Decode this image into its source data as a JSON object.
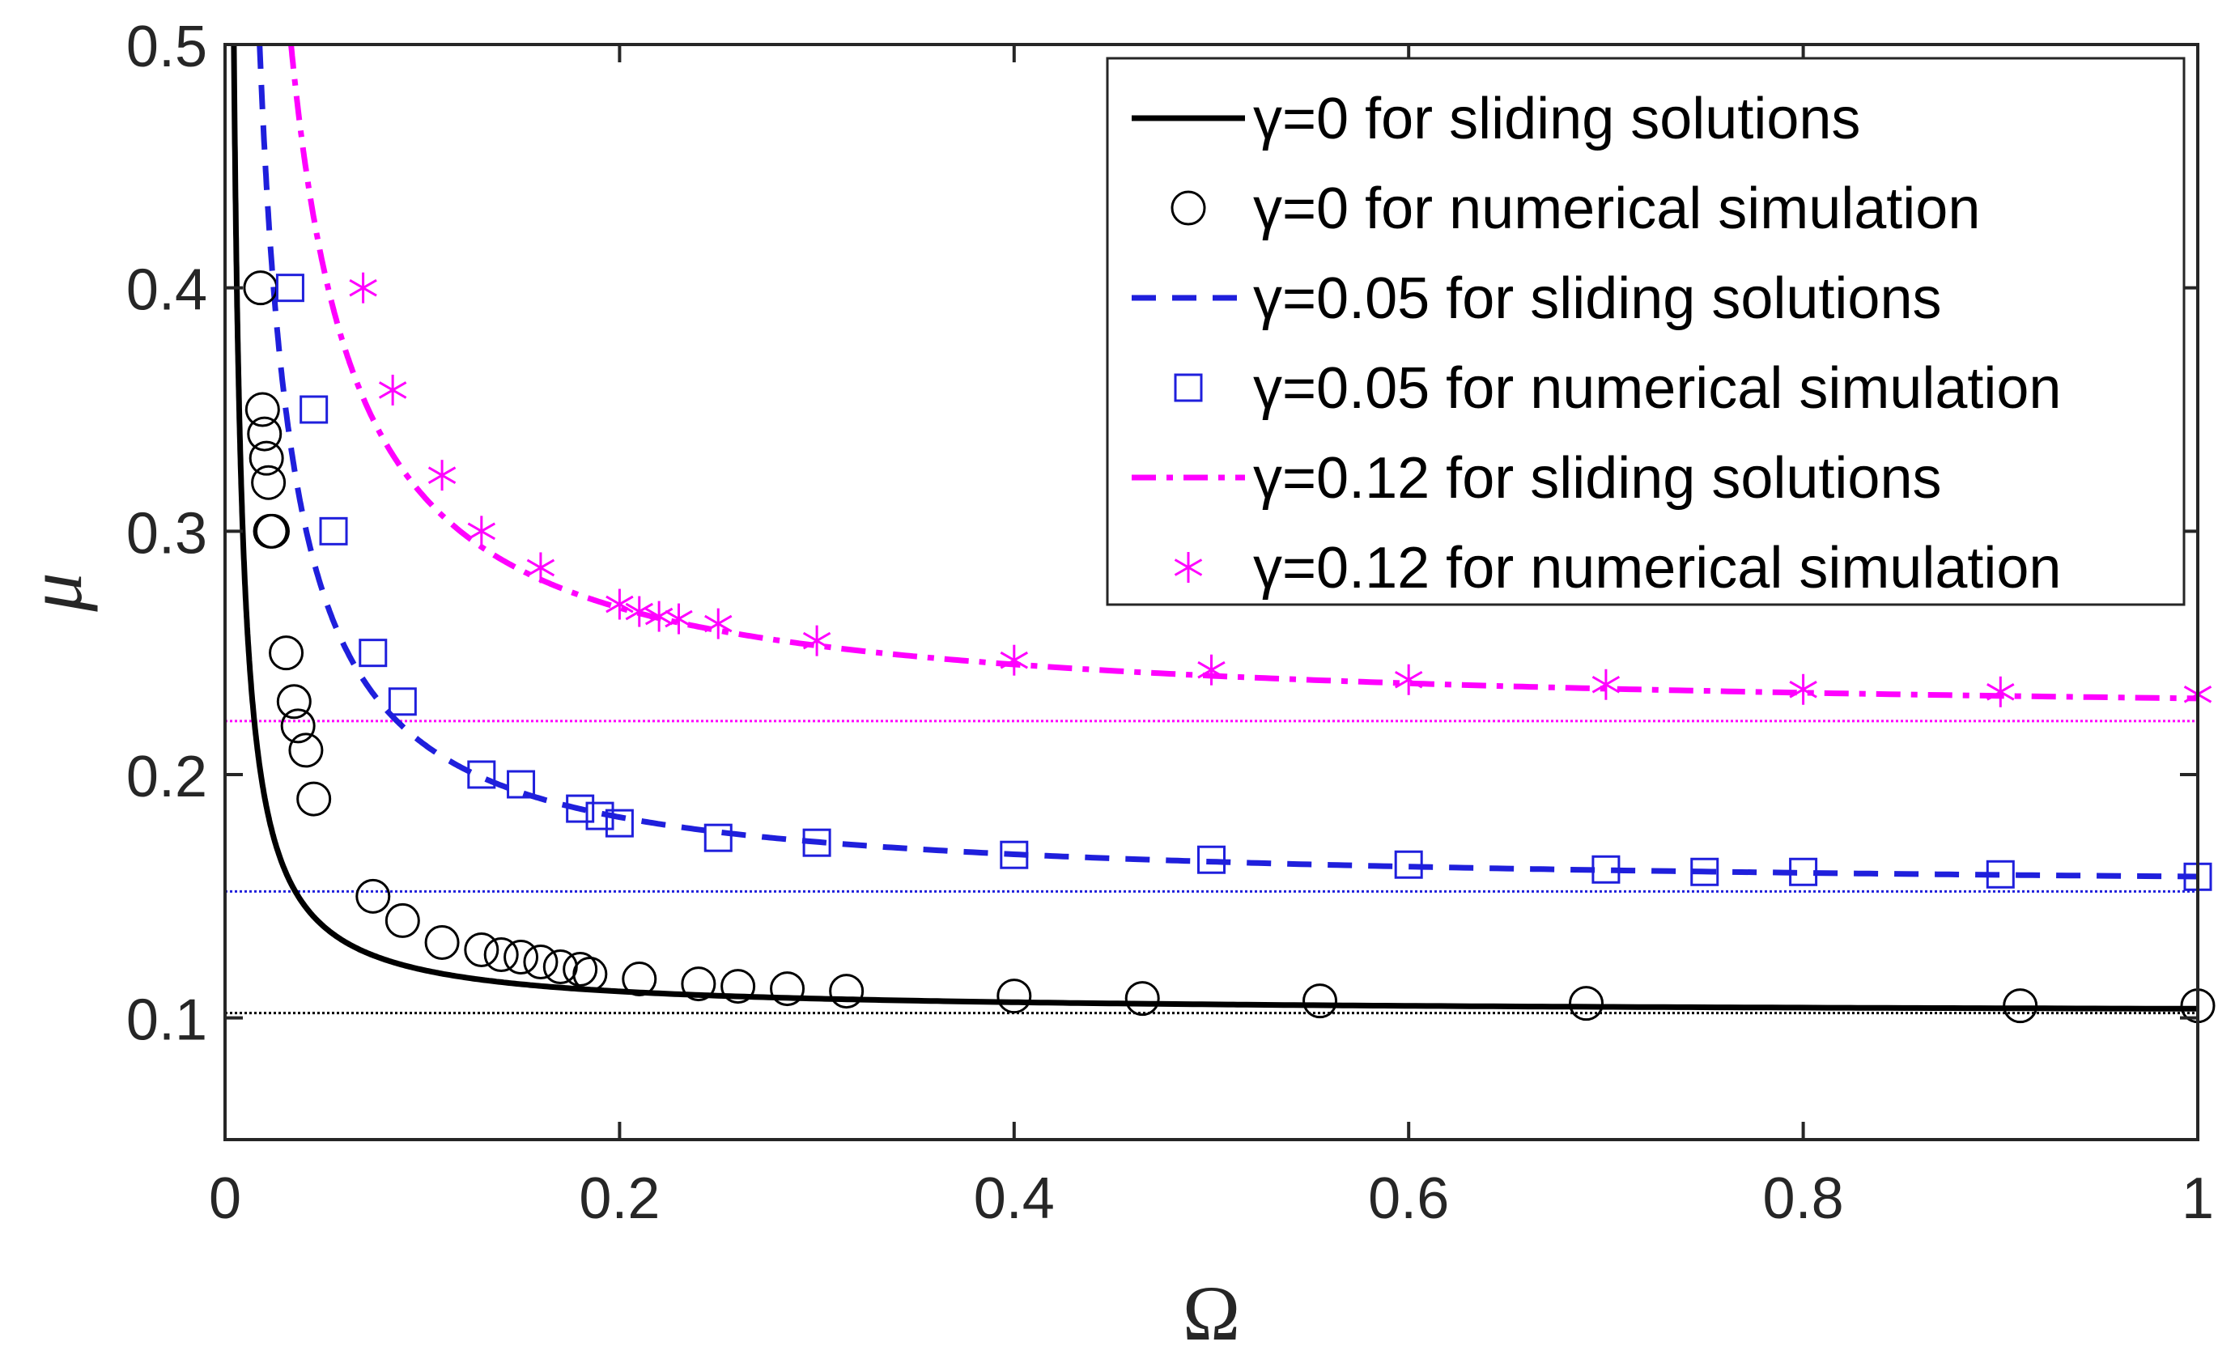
{
  "chart_data": {
    "type": "line",
    "title": "",
    "xlabel": "Ω",
    "ylabel": "μ",
    "xlim": [
      0,
      1
    ],
    "ylim": [
      0.05,
      0.5
    ],
    "x_ticks": [
      0,
      0.2,
      0.4,
      0.6,
      0.8,
      1
    ],
    "x_tick_labels": [
      "0",
      "0.2",
      "0.4",
      "0.6",
      "0.8",
      "1"
    ],
    "y_ticks": [
      0.1,
      0.2,
      0.3,
      0.4,
      0.5
    ],
    "y_tick_labels": [
      "0.1",
      "0.2",
      "0.3",
      "0.4",
      "0.5"
    ],
    "grid": false,
    "legend_position": "top-right",
    "colors": {
      "black": "#000000",
      "blue": "#1f1fdc",
      "magenta": "#ff00ff"
    },
    "series": [
      {
        "name": "γ=0 for sliding solutions",
        "kind": "line",
        "style": "solid",
        "color": "#000000",
        "gamma": 0,
        "asymptote": 0.102,
        "coef": 0.00178
      },
      {
        "name": "γ=0 for numerical simulation",
        "kind": "markers",
        "marker": "circle",
        "color": "#000000",
        "x": [
          0.018,
          0.019,
          0.02,
          0.021,
          0.022,
          0.023,
          0.024,
          0.031,
          0.035,
          0.037,
          0.041,
          0.045,
          0.075,
          0.09,
          0.11,
          0.13,
          0.14,
          0.15,
          0.16,
          0.17,
          0.18,
          0.185,
          0.21,
          0.24,
          0.26,
          0.285,
          0.315,
          0.4,
          0.465,
          0.555,
          0.69,
          0.91,
          1.0
        ],
        "y": [
          0.4,
          0.35,
          0.34,
          0.33,
          0.32,
          0.3,
          0.3,
          0.25,
          0.23,
          0.22,
          0.21,
          0.19,
          0.15,
          0.14,
          0.131,
          0.128,
          0.126,
          0.125,
          0.123,
          0.121,
          0.12,
          0.118,
          0.116,
          0.114,
          0.113,
          0.112,
          0.111,
          0.109,
          0.108,
          0.107,
          0.106,
          0.105,
          0.105
        ]
      },
      {
        "name": "γ=0.05 for sliding solutions",
        "kind": "line",
        "style": "dashed",
        "color": "#1f1fdc",
        "gamma": 0.05,
        "asymptote": 0.152,
        "coef": 0.0061
      },
      {
        "name": "γ=0.05 for numerical simulation",
        "kind": "markers",
        "marker": "square",
        "color": "#1f1fdc",
        "x": [
          0.033,
          0.045,
          0.055,
          0.075,
          0.09,
          0.13,
          0.15,
          0.18,
          0.19,
          0.2,
          0.25,
          0.3,
          0.4,
          0.5,
          0.6,
          0.7,
          0.75,
          0.8,
          0.9,
          1.0
        ],
        "y": [
          0.4,
          0.35,
          0.3,
          0.25,
          0.23,
          0.2,
          0.196,
          0.186,
          0.183,
          0.18,
          0.174,
          0.172,
          0.167,
          0.165,
          0.163,
          0.161,
          0.16,
          0.16,
          0.159,
          0.158
        ]
      },
      {
        "name": "γ=0.12 for sliding solutions",
        "kind": "line",
        "style": "dashdot",
        "color": "#ff00ff",
        "gamma": 0.12,
        "asymptote": 0.222,
        "coef": 0.0093
      },
      {
        "name": "γ=0.12 for numerical simulation",
        "kind": "markers",
        "marker": "star",
        "color": "#ff00ff",
        "x": [
          0.07,
          0.085,
          0.11,
          0.13,
          0.16,
          0.2,
          0.21,
          0.22,
          0.23,
          0.25,
          0.3,
          0.4,
          0.5,
          0.6,
          0.7,
          0.8,
          0.9,
          1.0
        ],
        "y": [
          0.4,
          0.358,
          0.323,
          0.3,
          0.285,
          0.27,
          0.267,
          0.265,
          0.264,
          0.262,
          0.255,
          0.247,
          0.243,
          0.239,
          0.237,
          0.235,
          0.234,
          0.233
        ]
      }
    ],
    "reference_lines": [
      {
        "value": 0.102,
        "color": "#000000"
      },
      {
        "value": 0.152,
        "color": "#1f1fdc"
      },
      {
        "value": 0.222,
        "color": "#ff00ff"
      }
    ]
  }
}
